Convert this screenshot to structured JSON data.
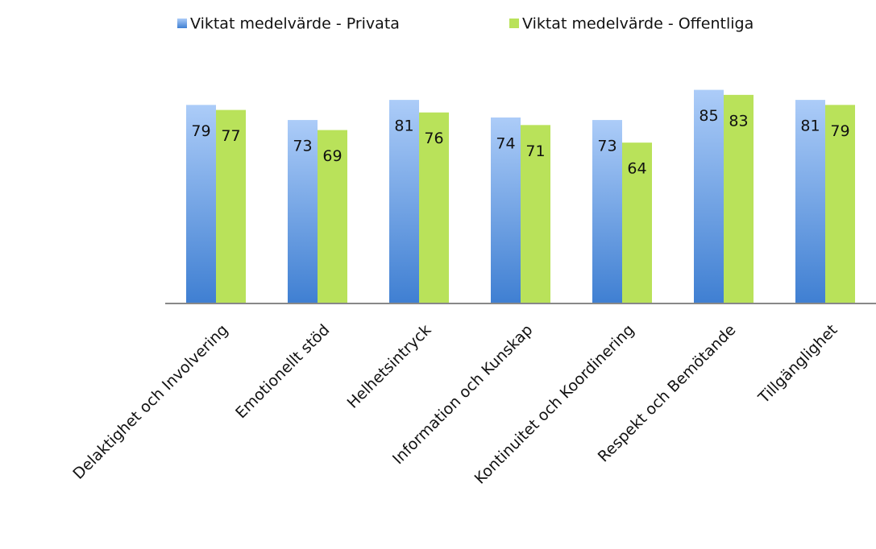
{
  "chart_data": {
    "type": "bar",
    "categories": [
      "Delaktighet och Involvering",
      "Emotionellt stöd",
      "Helhetsintryck",
      "Information och Kunskap",
      "Kontinuitet och Koordinering",
      "Respekt och Bemötande",
      "Tillgänglighet"
    ],
    "series": [
      {
        "name": "Viktat medelvärde - Privata",
        "color": "#3f7fd2",
        "values": [
          79,
          73,
          81,
          74,
          73,
          85,
          81
        ]
      },
      {
        "name": "Viktat medelvärde - Offentliga",
        "color": "#b9e25a",
        "values": [
          77,
          69,
          76,
          71,
          64,
          83,
          79
        ]
      }
    ],
    "ylim": [
      0,
      90
    ],
    "legend": "top"
  }
}
